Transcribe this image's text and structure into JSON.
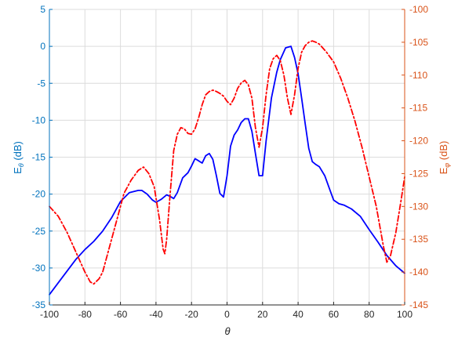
{
  "chart_data": {
    "type": "line",
    "xlabel": "θ",
    "ylabel_left": {
      "main": "E",
      "sub": "θ",
      "unit": " (dB)"
    },
    "ylabel_right": {
      "main": "E",
      "sub": "φ",
      "unit": " (dB)"
    },
    "xlim": [
      -100,
      100
    ],
    "ylim_left": [
      -35,
      5
    ],
    "ylim_right": [
      -145,
      -100
    ],
    "xticks": [
      -100,
      -80,
      -60,
      -40,
      -20,
      0,
      20,
      40,
      60,
      80,
      100
    ],
    "yticks_left": [
      -35,
      -30,
      -25,
      -20,
      -15,
      -10,
      -5,
      0,
      5
    ],
    "yticks_right": [
      -145,
      -140,
      -135,
      -130,
      -125,
      -120,
      -115,
      -110,
      -105,
      -100
    ],
    "grid": true,
    "colors": {
      "left_axis": "#0072BD",
      "right_axis": "#D95319",
      "series_left": "#0000FF",
      "series_right": "#FF0000"
    },
    "series": [
      {
        "axis": "left",
        "style": "solid",
        "x": [
          -100,
          -95,
          -90,
          -85,
          -80,
          -75,
          -70,
          -65,
          -60,
          -55,
          -50,
          -48,
          -45,
          -42,
          -40,
          -37,
          -34,
          -32,
          -30,
          -28,
          -25,
          -22,
          -20,
          -18,
          -16,
          -14,
          -12,
          -10,
          -8,
          -6,
          -4,
          -2,
          0,
          2,
          4,
          6,
          8,
          10,
          12,
          14,
          16,
          18,
          20,
          22,
          25,
          28,
          30,
          33,
          36,
          38,
          40,
          42,
          44,
          46,
          48,
          50,
          52,
          55,
          58,
          60,
          63,
          66,
          70,
          75,
          80,
          85,
          90,
          95,
          100
        ],
        "y": [
          -33.6,
          -32.0,
          -30.4,
          -28.8,
          -27.5,
          -26.4,
          -25.0,
          -23.2,
          -21.0,
          -19.8,
          -19.5,
          -19.5,
          -20.0,
          -20.8,
          -21.1,
          -20.7,
          -20.1,
          -20.3,
          -20.6,
          -19.8,
          -17.8,
          -17.1,
          -16.2,
          -15.2,
          -15.5,
          -15.8,
          -14.8,
          -14.5,
          -15.3,
          -17.5,
          -19.9,
          -20.4,
          -17.5,
          -13.5,
          -12.0,
          -11.3,
          -10.3,
          -9.8,
          -9.8,
          -11.5,
          -14.5,
          -17.5,
          -17.5,
          -12.8,
          -7.0,
          -3.5,
          -1.8,
          -0.2,
          0.0,
          -1.5,
          -3.7,
          -7.0,
          -10.5,
          -13.8,
          -15.6,
          -16.0,
          -16.3,
          -17.5,
          -19.5,
          -20.8,
          -21.3,
          -21.5,
          -22.0,
          -23.0,
          -24.8,
          -26.5,
          -28.3,
          -29.7,
          -30.7
        ]
      },
      {
        "axis": "right",
        "style": "dashdot",
        "x": [
          -100,
          -95,
          -90,
          -85,
          -80,
          -77,
          -75,
          -72,
          -70,
          -66,
          -62,
          -58,
          -54,
          -50,
          -47,
          -44,
          -41,
          -38,
          -36,
          -35,
          -34,
          -32,
          -30,
          -28,
          -26,
          -24,
          -22,
          -20,
          -18,
          -16,
          -14,
          -12,
          -10,
          -8,
          -6,
          -4,
          -2,
          0,
          2,
          4,
          6,
          8,
          10,
          12,
          14,
          16,
          18,
          20,
          22,
          24,
          26,
          28,
          30,
          32,
          34,
          36,
          38,
          40,
          42,
          44,
          46,
          48,
          50,
          52,
          56,
          60,
          64,
          68,
          72,
          76,
          80,
          84,
          86,
          88,
          90,
          92,
          95,
          98,
          100
        ],
        "y": [
          -130.0,
          -131.5,
          -134.0,
          -137.0,
          -140.0,
          -141.5,
          -141.8,
          -141.0,
          -140.0,
          -136.0,
          -132.0,
          -128.0,
          -126.0,
          -124.5,
          -124.0,
          -125.0,
          -127.0,
          -132.0,
          -136.5,
          -137.2,
          -135.0,
          -128.0,
          -121.5,
          -119.0,
          -118.0,
          -118.2,
          -118.9,
          -119.0,
          -118.2,
          -116.5,
          -114.5,
          -113.0,
          -112.5,
          -112.3,
          -112.5,
          -112.8,
          -113.2,
          -114.0,
          -114.5,
          -113.5,
          -112.0,
          -111.2,
          -110.8,
          -111.5,
          -113.5,
          -118.0,
          -121.0,
          -118.0,
          -113.0,
          -109.0,
          -107.5,
          -107.0,
          -107.8,
          -110.0,
          -113.5,
          -116.0,
          -113.0,
          -109.0,
          -106.5,
          -105.5,
          -105.0,
          -104.8,
          -105.0,
          -105.3,
          -106.5,
          -108.0,
          -110.5,
          -113.5,
          -117.0,
          -121.0,
          -125.5,
          -130.0,
          -133.0,
          -136.0,
          -138.5,
          -137.5,
          -134.0,
          -129.0,
          -125.5
        ]
      }
    ]
  }
}
